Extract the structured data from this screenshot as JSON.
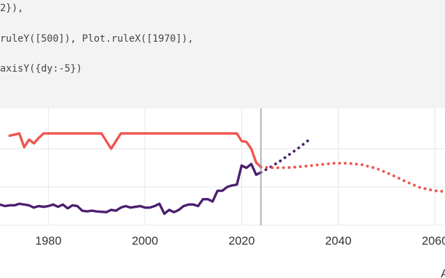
{
  "code": {
    "lines": [
      "2}),",
      "ruleY([500]), Plot.ruleX([1970]),",
      "axisY({dy:-5})"
    ]
  },
  "colors": {
    "code_background": "#f3f3f3",
    "code_text": "#444444",
    "grid": "#e6e6e6",
    "purple_series": "#4b1f6f",
    "red_series": "#f0544f",
    "rule": "#9a9a9a",
    "tick_text": "#333333"
  },
  "chart_data": {
    "type": "line",
    "xlim": [
      1970,
      2065
    ],
    "x_ticks": [
      "1980",
      "2000",
      "2020",
      "2040",
      "2060"
    ],
    "axis_fragment": "A",
    "grid": true,
    "vertical_rule_x": 2024,
    "series": [
      {
        "style": "solid",
        "color": "#4b1f6f",
        "points": [
          [
            1970,
            0.27
          ],
          [
            1971,
            0.25
          ],
          [
            1972,
            0.26
          ],
          [
            1973,
            0.26
          ],
          [
            1974,
            0.28
          ],
          [
            1975,
            0.27
          ],
          [
            1976,
            0.26
          ],
          [
            1977,
            0.23
          ],
          [
            1978,
            0.25
          ],
          [
            1979,
            0.24
          ],
          [
            1980,
            0.25
          ],
          [
            1981,
            0.27
          ],
          [
            1982,
            0.24
          ],
          [
            1983,
            0.27
          ],
          [
            1984,
            0.22
          ],
          [
            1985,
            0.26
          ],
          [
            1986,
            0.25
          ],
          [
            1987,
            0.19
          ],
          [
            1988,
            0.18
          ],
          [
            1989,
            0.19
          ],
          [
            1990,
            0.18
          ],
          [
            1991,
            0.175
          ],
          [
            1992,
            0.17
          ],
          [
            1993,
            0.2
          ],
          [
            1994,
            0.19
          ],
          [
            1995,
            0.23
          ],
          [
            1996,
            0.25
          ],
          [
            1997,
            0.23
          ],
          [
            1998,
            0.24
          ],
          [
            1999,
            0.25
          ],
          [
            2000,
            0.23
          ],
          [
            2001,
            0.23
          ],
          [
            2002,
            0.25
          ],
          [
            2003,
            0.28
          ],
          [
            2004,
            0.15
          ],
          [
            2005,
            0.2
          ],
          [
            2006,
            0.17
          ],
          [
            2007,
            0.2
          ],
          [
            2008,
            0.25
          ],
          [
            2009,
            0.27
          ],
          [
            2010,
            0.27
          ],
          [
            2011,
            0.25
          ],
          [
            2012,
            0.34
          ],
          [
            2013,
            0.34
          ],
          [
            2014,
            0.31
          ],
          [
            2015,
            0.45
          ],
          [
            2016,
            0.45
          ],
          [
            2017,
            0.5
          ],
          [
            2018,
            0.52
          ],
          [
            2019,
            0.53
          ],
          [
            2020,
            0.78
          ],
          [
            2021,
            0.75
          ],
          [
            2022,
            0.8
          ],
          [
            2023,
            0.66
          ],
          [
            2024,
            0.69
          ]
        ]
      },
      {
        "style": "dotted",
        "color": "#4b1f6f",
        "points": [
          [
            2024,
            0.69
          ],
          [
            2026,
            0.76
          ],
          [
            2028,
            0.84
          ],
          [
            2030,
            0.93
          ],
          [
            2032,
            1.02
          ],
          [
            2034,
            1.12
          ]
        ]
      },
      {
        "style": "solid",
        "color": "#f0544f",
        "points": [
          [
            1972,
            1.17
          ],
          [
            1974,
            1.2
          ],
          [
            1975,
            1.02
          ],
          [
            1976,
            1.12
          ],
          [
            1977,
            1.07
          ],
          [
            1978,
            1.14
          ],
          [
            1979,
            1.2
          ],
          [
            1991,
            1.2
          ],
          [
            1993,
            1.0
          ],
          [
            1995,
            1.2
          ],
          [
            2019,
            1.2
          ],
          [
            2020,
            1.1
          ],
          [
            2021,
            1.09
          ],
          [
            2022,
            1.0
          ],
          [
            2023,
            0.82
          ],
          [
            2024,
            0.76
          ]
        ]
      },
      {
        "style": "dotted",
        "color": "#f0544f",
        "points": [
          [
            2024,
            0.76
          ],
          [
            2027,
            0.75
          ],
          [
            2030,
            0.755
          ],
          [
            2033,
            0.77
          ],
          [
            2036,
            0.79
          ],
          [
            2039,
            0.81
          ],
          [
            2042,
            0.81
          ],
          [
            2045,
            0.79
          ],
          [
            2048,
            0.74
          ],
          [
            2051,
            0.66
          ],
          [
            2054,
            0.57
          ],
          [
            2057,
            0.49
          ],
          [
            2060,
            0.45
          ],
          [
            2063,
            0.435
          ],
          [
            2066,
            0.43
          ]
        ]
      }
    ]
  }
}
